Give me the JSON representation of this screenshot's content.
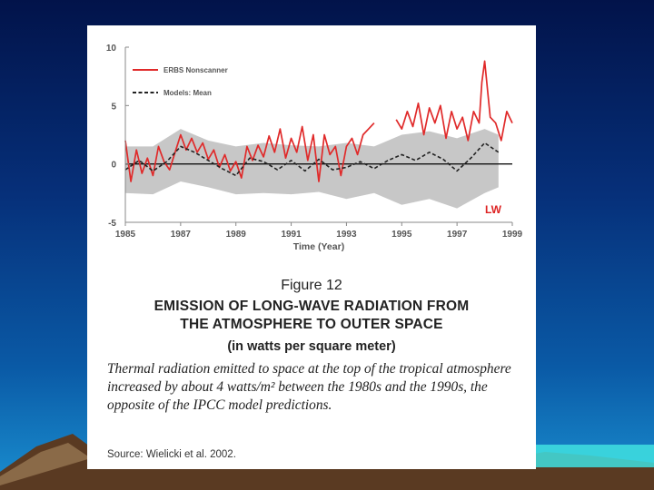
{
  "colors": {
    "observed": "#e02a2a",
    "model": "#222222",
    "band": "#bdbdbd",
    "lw_label": "#d22222"
  },
  "chart_data": {
    "type": "line",
    "title": "",
    "xlabel": "Time (Year)",
    "ylabel": "",
    "xlim": [
      1985,
      1999
    ],
    "ylim": [
      -5,
      10
    ],
    "x_ticks": [
      "1985",
      "1987",
      "1989",
      "1991",
      "1993",
      "1995",
      "1997",
      "1999"
    ],
    "y_ticks": [
      "10",
      "5",
      "0",
      "-5"
    ],
    "annotation": "LW",
    "legend": [
      "ERBS Nonscanner",
      "Models: Mean"
    ],
    "series": [
      {
        "name": "ERBS Nonscanner",
        "style": "solid-red",
        "x": [
          1985.0,
          1985.2,
          1985.4,
          1985.6,
          1985.8,
          1986.0,
          1986.2,
          1986.4,
          1986.6,
          1986.8,
          1987.0,
          1987.2,
          1987.4,
          1987.6,
          1987.8,
          1988.0,
          1988.2,
          1988.4,
          1988.6,
          1988.8,
          1989.0,
          1989.2,
          1989.4,
          1989.6,
          1989.8,
          1990.0,
          1990.2,
          1990.4,
          1990.6,
          1990.8,
          1991.0,
          1991.2,
          1991.4,
          1991.6,
          1991.8,
          1992.0,
          1992.2,
          1992.4,
          1992.6,
          1992.8,
          1993.0,
          1993.2,
          1993.4,
          1993.6,
          1993.8,
          1994.0
        ],
        "y": [
          2.0,
          -1.5,
          1.2,
          -0.8,
          0.5,
          -1.0,
          1.5,
          0.2,
          -0.5,
          1.0,
          2.5,
          1.2,
          2.2,
          1.0,
          1.8,
          0.4,
          1.2,
          -0.3,
          0.8,
          -0.6,
          0.2,
          -1.2,
          1.5,
          0.3,
          1.6,
          0.6,
          2.4,
          1.0,
          3.0,
          0.5,
          2.2,
          1.0,
          3.2,
          0.3,
          2.5,
          -1.5,
          2.5,
          0.8,
          1.5,
          -1.0,
          1.5,
          2.2,
          0.8,
          2.5,
          3.0,
          3.5
        ]
      },
      {
        "name": "ERBS Nonscanner (1994.8-1999)",
        "style": "solid-red",
        "x": [
          1994.8,
          1995.0,
          1995.2,
          1995.4,
          1995.6,
          1995.8,
          1996.0,
          1996.2,
          1996.4,
          1996.6,
          1996.8,
          1997.0,
          1997.2,
          1997.4,
          1997.6,
          1997.8,
          1997.9,
          1998.0,
          1998.2,
          1998.4,
          1998.6,
          1998.8,
          1999.0
        ],
        "y": [
          3.8,
          3.0,
          4.5,
          3.2,
          5.2,
          2.5,
          4.8,
          3.5,
          5.0,
          2.2,
          4.5,
          3.0,
          4.0,
          2.0,
          4.5,
          3.5,
          7.0,
          8.8,
          4.0,
          3.5,
          2.0,
          4.5,
          3.5
        ]
      },
      {
        "name": "Models: Mean",
        "style": "dashed-black",
        "x": [
          1985.0,
          1985.5,
          1986.0,
          1986.5,
          1987.0,
          1987.5,
          1988.0,
          1988.5,
          1989.0,
          1989.5,
          1990.0,
          1990.5,
          1991.0,
          1991.5,
          1992.0,
          1992.5,
          1993.0,
          1993.5,
          1994.0,
          1994.5,
          1995.0,
          1995.5,
          1996.0,
          1996.5,
          1997.0,
          1997.5,
          1998.0,
          1998.5
        ],
        "y": [
          -0.5,
          0.3,
          -0.6,
          0.2,
          1.5,
          1.0,
          0.3,
          -0.4,
          -1.0,
          0.5,
          0.2,
          -0.5,
          0.3,
          -0.6,
          0.4,
          -0.5,
          -0.3,
          0.2,
          -0.4,
          0.3,
          0.8,
          0.3,
          1.0,
          0.4,
          -0.6,
          0.5,
          1.8,
          1.0
        ]
      },
      {
        "name": "Model spread (band)",
        "style": "gray-band",
        "x": [
          1985.0,
          1986.0,
          1987.0,
          1988.0,
          1989.0,
          1990.0,
          1991.0,
          1992.0,
          1993.0,
          1994.0,
          1995.0,
          1996.0,
          1997.0,
          1998.0,
          1998.5
        ],
        "upper": [
          1.5,
          1.5,
          3.0,
          2.0,
          1.5,
          1.8,
          1.6,
          1.5,
          1.8,
          1.5,
          2.5,
          2.8,
          2.2,
          3.0,
          2.5
        ],
        "lower": [
          -2.5,
          -2.6,
          -1.5,
          -2.0,
          -2.6,
          -2.5,
          -2.6,
          -2.4,
          -3.0,
          -2.5,
          -3.5,
          -3.0,
          -3.8,
          -2.5,
          -2.0
        ]
      }
    ]
  },
  "caption": {
    "figure": "Figure 12",
    "heading_line1": "EMISSION OF LONG-WAVE RADIATION FROM",
    "heading_line2": "THE ATMOSPHERE TO OUTER SPACE",
    "units": "(in watts per square meter)",
    "description": "Thermal radiation emitted to space at the top of the tropical atmosphere increased by about 4 watts/m² between the 1980s and the 1990s, the opposite of the IPCC model predictions.",
    "source": "Source: Wielicki et al. 2002."
  }
}
